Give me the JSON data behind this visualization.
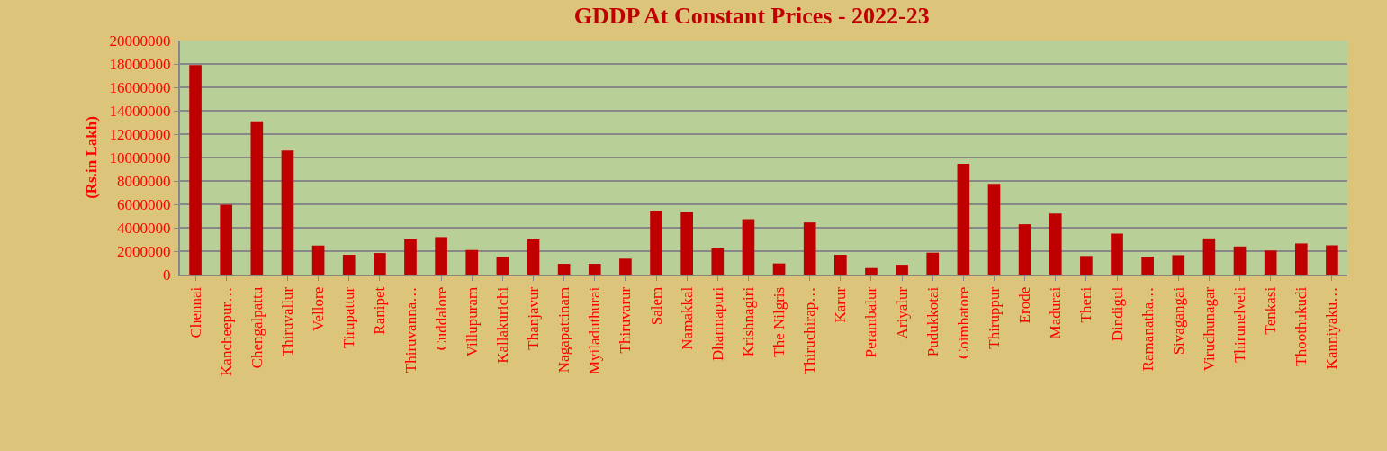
{
  "chart_data": {
    "type": "bar",
    "title": "GDDP At Constant Prices - 2022-23",
    "ylabel": "(Rs.in Lakh)",
    "categories": [
      "Chennai",
      "Kancheepur…",
      "Chengalpattu",
      "Thiruvallur",
      "Vellore",
      "Tirupattur",
      "Ranipet",
      "Thiruvanna…",
      "Cuddalore",
      "Villupuram",
      "Kallakurichi",
      "Thanjavur",
      "Nagapattinam",
      "Myiladuthurai",
      "Thiruvarur",
      "Salem",
      "Namakkal",
      "Dharmapuri",
      "Krishnagiri",
      "The Nilgris",
      "Thiruchirap…",
      "Karur",
      "Perambalur",
      "Ariyalur",
      "Pudukkotai",
      "Coimbatore",
      "Thiruppur",
      "Erode",
      "Madurai",
      "Theni",
      "Dindigul",
      "Ramanatha…",
      "Sivagangai",
      "Virudhunagar",
      "Thirunelveli",
      "Tenkasi",
      "Thoothukudi",
      "Kanniyaku…"
    ],
    "values": [
      17900000,
      5960000,
      13100000,
      10600000,
      2480000,
      1690000,
      1840000,
      3020000,
      3200000,
      2100000,
      1500000,
      3000000,
      920000,
      920000,
      1360000,
      5470000,
      5350000,
      2230000,
      4730000,
      950000,
      4450000,
      1690000,
      560000,
      840000,
      1870000,
      9460000,
      7750000,
      4300000,
      5220000,
      1590000,
      3500000,
      1530000,
      1660000,
      3090000,
      2400000,
      2050000,
      2660000,
      2500000
    ],
    "color": "#c00000",
    "ylim": [
      0,
      20000000
    ],
    "yticks": [
      0,
      2000000,
      4000000,
      6000000,
      8000000,
      10000000,
      12000000,
      14000000,
      16000000,
      18000000,
      20000000
    ],
    "grid": "y"
  }
}
